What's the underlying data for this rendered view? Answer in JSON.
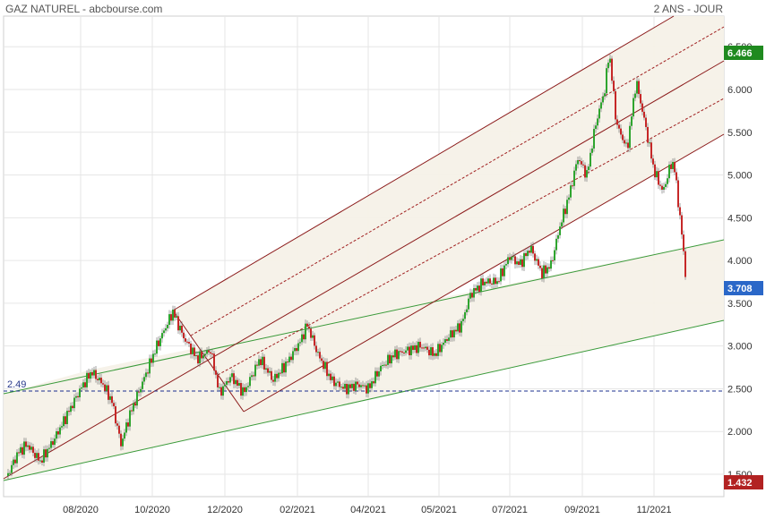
{
  "header": {
    "title": "GAZ NATUREL - abcbourse.com",
    "period": "2 ANS - JOUR"
  },
  "chart_data": {
    "type": "candlestick",
    "title": "GAZ NATUREL",
    "x_tick_labels": [
      "08/2020",
      "10/2020",
      "12/2020",
      "02/2021",
      "04/2021",
      "05/2021",
      "07/2021",
      "09/2021",
      "11/2021"
    ],
    "y_tick_labels": [
      "1.500",
      "2.000",
      "2.500",
      "3.000",
      "3.500",
      "4.000",
      "4.500",
      "5.000",
      "5.500",
      "6.000",
      "6.500"
    ],
    "ylim": [
      1.35,
      6.78
    ],
    "grid": true,
    "max_tag": "6.466",
    "last_tag": "3.708",
    "min_tag": "1.432",
    "reference_line": {
      "label": "2.49",
      "value": 2.49
    },
    "series_close_monthly": [
      {
        "x": "2020-07",
        "close": 1.8
      },
      {
        "x": "2020-08",
        "close": 2.65
      },
      {
        "x": "2020-09",
        "close": 2.1
      },
      {
        "x": "2020-10",
        "close": 3.3
      },
      {
        "x": "2020-11",
        "close": 2.85
      },
      {
        "x": "2020-12",
        "close": 2.55
      },
      {
        "x": "2021-01",
        "close": 2.6
      },
      {
        "x": "2021-02",
        "close": 2.75
      },
      {
        "x": "2021-03",
        "close": 2.6
      },
      {
        "x": "2021-04",
        "close": 2.95
      },
      {
        "x": "2021-05",
        "close": 3.0
      },
      {
        "x": "2021-06",
        "close": 3.6
      },
      {
        "x": "2021-07",
        "close": 3.95
      },
      {
        "x": "2021-08",
        "close": 4.4
      },
      {
        "x": "2021-09",
        "close": 5.8
      },
      {
        "x": "2021-10",
        "close": 5.4
      },
      {
        "x": "2021-11",
        "close": 4.5
      },
      {
        "x": "2021-12",
        "close": 3.708
      }
    ],
    "channels": [
      {
        "kind": "green-regression-channel"
      },
      {
        "kind": "red-regression-channel"
      }
    ]
  }
}
